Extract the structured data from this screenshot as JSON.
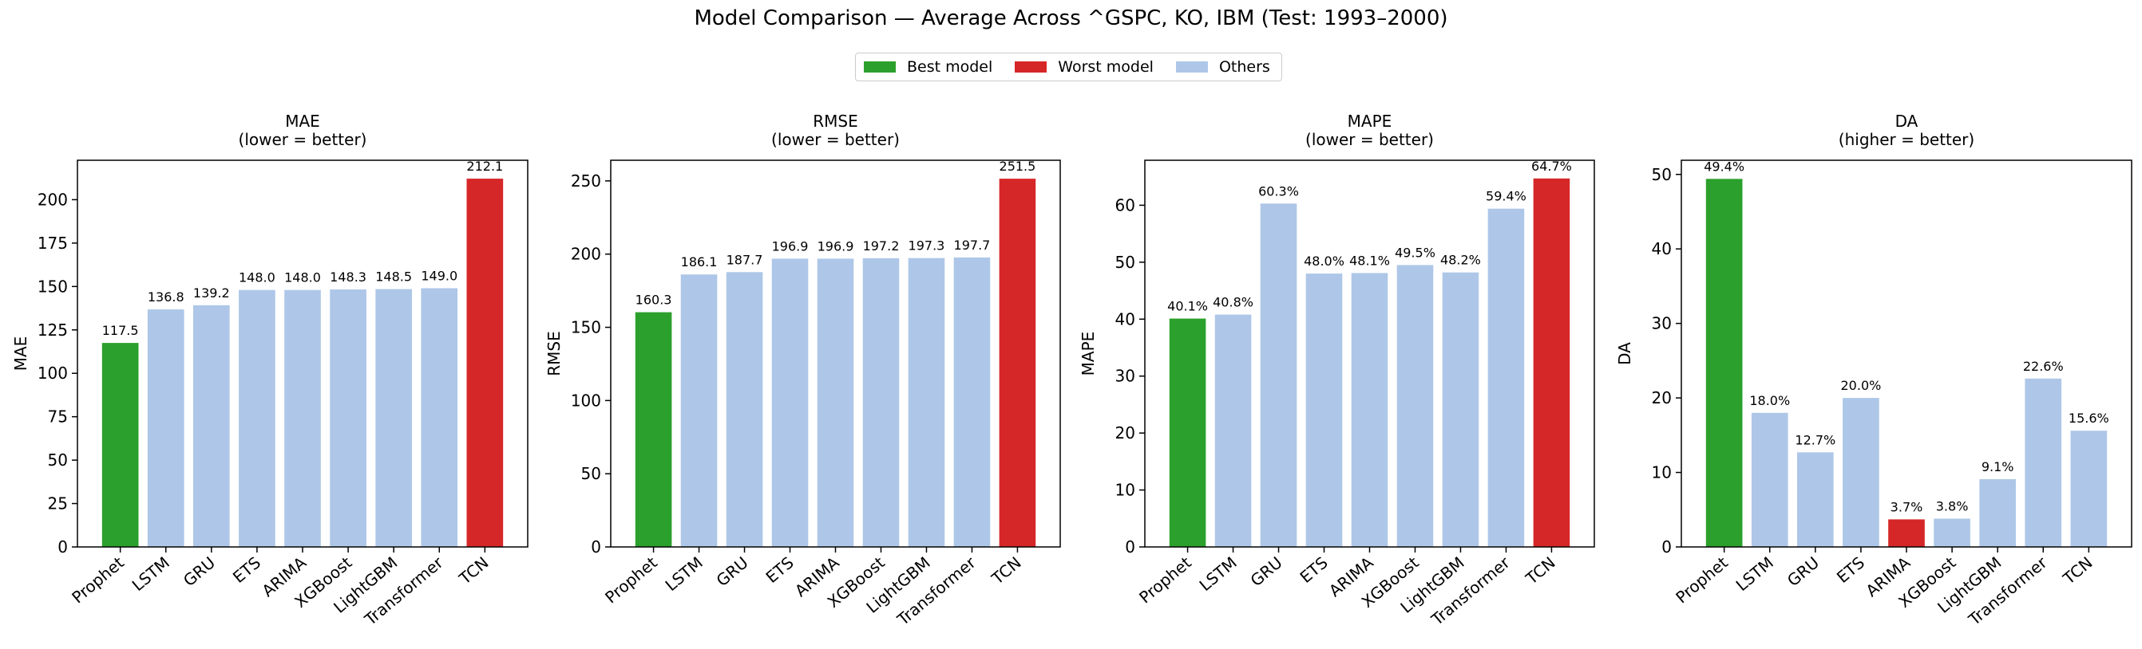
{
  "figure": {
    "title": "Model Comparison — Average Across ^GSPC, KO, IBM (Test: 1993–2000)"
  },
  "legend": {
    "items": [
      {
        "label": "Best model",
        "color": "#2ca02c"
      },
      {
        "label": "Worst model",
        "color": "#d62728"
      },
      {
        "label": "Others",
        "color": "#aec7e8"
      }
    ]
  },
  "colors": {
    "best": "#2ca02c",
    "worst": "#d62728",
    "other": "#aec7e8"
  },
  "chart_data": [
    {
      "type": "bar",
      "title": "MAE",
      "subtitle": "(lower = better)",
      "xlabel": "",
      "ylabel": "MAE",
      "categories": [
        "Prophet",
        "LSTM",
        "GRU",
        "ETS",
        "ARIMA",
        "XGBoost",
        "LightGBM",
        "Transformer",
        "TCN"
      ],
      "values": [
        117.5,
        136.8,
        139.2,
        148.0,
        148.0,
        148.3,
        148.5,
        149.0,
        212.1
      ],
      "value_labels": [
        "117.5",
        "136.8",
        "139.2",
        "148.0",
        "148.0",
        "148.3",
        "148.5",
        "149.0",
        "212.1"
      ],
      "highlight": [
        "best",
        "other",
        "other",
        "other",
        "other",
        "other",
        "other",
        "other",
        "worst"
      ],
      "ylim": [
        0,
        222.7
      ],
      "yticks": [
        0,
        25,
        50,
        75,
        100,
        125,
        150,
        175,
        200
      ],
      "grid": false
    },
    {
      "type": "bar",
      "title": "RMSE",
      "subtitle": "(lower = better)",
      "xlabel": "",
      "ylabel": "RMSE",
      "categories": [
        "Prophet",
        "LSTM",
        "GRU",
        "ETS",
        "ARIMA",
        "XGBoost",
        "LightGBM",
        "Transformer",
        "TCN"
      ],
      "values": [
        160.3,
        186.1,
        187.7,
        196.9,
        196.9,
        197.2,
        197.3,
        197.7,
        251.5
      ],
      "value_labels": [
        "160.3",
        "186.1",
        "187.7",
        "196.9",
        "196.9",
        "197.2",
        "197.3",
        "197.7",
        "251.5"
      ],
      "highlight": [
        "best",
        "other",
        "other",
        "other",
        "other",
        "other",
        "other",
        "other",
        "worst"
      ],
      "ylim": [
        0,
        264.1
      ],
      "yticks": [
        0,
        50,
        100,
        150,
        200,
        250
      ],
      "grid": false
    },
    {
      "type": "bar",
      "title": "MAPE",
      "subtitle": "(lower = better)",
      "xlabel": "",
      "ylabel": "MAPE",
      "categories": [
        "Prophet",
        "LSTM",
        "GRU",
        "ETS",
        "ARIMA",
        "XGBoost",
        "LightGBM",
        "Transformer",
        "TCN"
      ],
      "values": [
        40.1,
        40.8,
        60.3,
        48.0,
        48.1,
        49.5,
        48.2,
        59.4,
        64.7
      ],
      "value_labels": [
        "40.1%",
        "40.8%",
        "60.3%",
        "48.0%",
        "48.1%",
        "49.5%",
        "48.2%",
        "59.4%",
        "64.7%"
      ],
      "highlight": [
        "best",
        "other",
        "other",
        "other",
        "other",
        "other",
        "other",
        "other",
        "worst"
      ],
      "ylim": [
        0,
        67.9
      ],
      "yticks": [
        0,
        10,
        20,
        30,
        40,
        50,
        60
      ],
      "grid": false
    },
    {
      "type": "bar",
      "title": "DA",
      "subtitle": "(higher = better)",
      "xlabel": "",
      "ylabel": "DA",
      "categories": [
        "Prophet",
        "LSTM",
        "GRU",
        "ETS",
        "ARIMA",
        "XGBoost",
        "LightGBM",
        "Transformer",
        "TCN"
      ],
      "values": [
        49.4,
        18.0,
        12.7,
        20.0,
        3.7,
        3.8,
        9.1,
        22.6,
        15.6
      ],
      "value_labels": [
        "49.4%",
        "18.0%",
        "12.7%",
        "20.0%",
        "3.7%",
        "3.8%",
        "9.1%",
        "22.6%",
        "15.6%"
      ],
      "highlight": [
        "best",
        "other",
        "other",
        "other",
        "worst",
        "other",
        "other",
        "other",
        "other"
      ],
      "ylim": [
        0,
        51.9
      ],
      "yticks": [
        0,
        10,
        20,
        30,
        40,
        50
      ],
      "grid": false
    }
  ]
}
